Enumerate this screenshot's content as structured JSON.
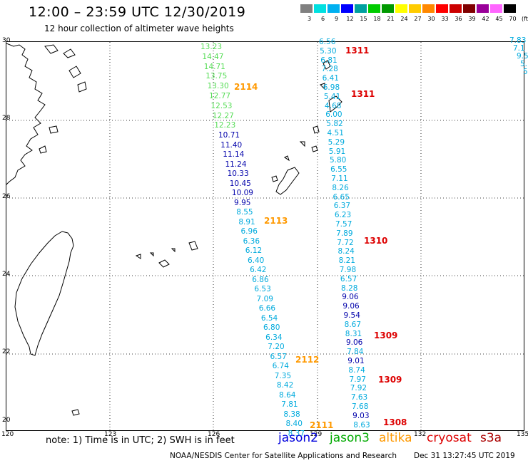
{
  "title": "12:00 – 23:59 UTC 12/30/2019",
  "subtitle": "12 hour collection of altimeter wave heights",
  "legend": {
    "unit": "(ft)",
    "colors": [
      "#808080",
      "#00e0e0",
      "#00b0f0",
      "#0000ff",
      "#00a0a0",
      "#00cc00",
      "#009900",
      "#ffff00",
      "#ffcc00",
      "#ff8800",
      "#ff0000",
      "#cc0000",
      "#800000",
      "#990099",
      "#ff66ff",
      "#000000"
    ],
    "labels": [
      "3",
      "6",
      "9",
      "12",
      "15",
      "18",
      "21",
      "24",
      "27",
      "30",
      "33",
      "36",
      "39",
      "42",
      "45",
      "70"
    ]
  },
  "axes": {
    "lat_labels": [
      "30",
      "28",
      "26",
      "24",
      "22",
      "20"
    ],
    "lon_labels": [
      "120",
      "123",
      "126",
      "129",
      "132",
      "135"
    ]
  },
  "colors": {
    "green": "#55dd55",
    "navy": "#0000aa",
    "cyan": "#00aadd",
    "orange": "#ff9900",
    "red": "#dd0000"
  },
  "tracks": {
    "green": [
      "13.23",
      "14.47",
      "14.71",
      "13.75",
      "13.30",
      "12.77",
      "12.53",
      "12.27",
      "12.23"
    ],
    "track_a": [
      {
        "v": "10.71",
        "c": "navy"
      },
      {
        "v": "11.40",
        "c": "navy"
      },
      {
        "v": "11.14",
        "c": "navy"
      },
      {
        "v": "11.24",
        "c": "navy"
      },
      {
        "v": "10.33",
        "c": "navy"
      },
      {
        "v": "10.45",
        "c": "navy"
      },
      {
        "v": "10.09",
        "c": "navy"
      },
      {
        "v": "9.95",
        "c": "navy"
      },
      {
        "v": "8.55",
        "c": "cyan"
      },
      {
        "v": "8.91",
        "c": "cyan"
      },
      {
        "v": "6.96",
        "c": "cyan"
      },
      {
        "v": "6.36",
        "c": "cyan"
      },
      {
        "v": "6.12",
        "c": "cyan"
      },
      {
        "v": "6.40",
        "c": "cyan"
      },
      {
        "v": "6.42",
        "c": "cyan"
      },
      {
        "v": "6.86",
        "c": "cyan"
      },
      {
        "v": "6.53",
        "c": "cyan"
      },
      {
        "v": "7.09",
        "c": "cyan"
      },
      {
        "v": "6.66",
        "c": "cyan"
      },
      {
        "v": "6.54",
        "c": "cyan"
      },
      {
        "v": "6.80",
        "c": "cyan"
      },
      {
        "v": "6.34",
        "c": "cyan"
      },
      {
        "v": "7.20",
        "c": "cyan"
      },
      {
        "v": "6.57",
        "c": "cyan"
      },
      {
        "v": "6.74",
        "c": "cyan"
      },
      {
        "v": "7.35",
        "c": "cyan"
      },
      {
        "v": "8.42",
        "c": "cyan"
      },
      {
        "v": "8.64",
        "c": "cyan"
      },
      {
        "v": "7.81",
        "c": "cyan"
      },
      {
        "v": "8.38",
        "c": "cyan"
      },
      {
        "v": "8.40",
        "c": "cyan"
      },
      {
        "v": "8.37",
        "c": "cyan"
      }
    ],
    "track_b": [
      {
        "v": "6.56",
        "c": "cyan"
      },
      {
        "v": "5.30",
        "c": "cyan"
      },
      {
        "v": "6.81",
        "c": "cyan"
      },
      {
        "v": "7.28",
        "c": "cyan"
      },
      {
        "v": "6.41",
        "c": "cyan"
      },
      {
        "v": "6.98",
        "c": "cyan"
      },
      {
        "v": "5.41",
        "c": "cyan"
      },
      {
        "v": "4.68",
        "c": "cyan"
      },
      {
        "v": "6.00",
        "c": "cyan"
      },
      {
        "v": "5.82",
        "c": "cyan"
      },
      {
        "v": "4.51",
        "c": "cyan"
      },
      {
        "v": "5.29",
        "c": "cyan"
      },
      {
        "v": "5.91",
        "c": "cyan"
      },
      {
        "v": "5.80",
        "c": "cyan"
      },
      {
        "v": "6.55",
        "c": "cyan"
      },
      {
        "v": "7.11",
        "c": "cyan"
      },
      {
        "v": "8.26",
        "c": "cyan"
      },
      {
        "v": "6.65",
        "c": "cyan"
      },
      {
        "v": "6.37",
        "c": "cyan"
      },
      {
        "v": "6.23",
        "c": "cyan"
      },
      {
        "v": "7.57",
        "c": "cyan"
      },
      {
        "v": "7.89",
        "c": "cyan"
      },
      {
        "v": "7.72",
        "c": "cyan"
      },
      {
        "v": "8.24",
        "c": "cyan"
      },
      {
        "v": "8.21",
        "c": "cyan"
      },
      {
        "v": "7.98",
        "c": "cyan"
      },
      {
        "v": "6.57",
        "c": "cyan"
      },
      {
        "v": "8.28",
        "c": "cyan"
      },
      {
        "v": "9.06",
        "c": "navy"
      },
      {
        "v": "9.06",
        "c": "navy"
      },
      {
        "v": "9.54",
        "c": "navy"
      },
      {
        "v": "8.67",
        "c": "cyan"
      },
      {
        "v": "8.31",
        "c": "cyan"
      },
      {
        "v": "9.06",
        "c": "navy"
      },
      {
        "v": "7.84",
        "c": "cyan"
      },
      {
        "v": "9.01",
        "c": "navy"
      },
      {
        "v": "8.74",
        "c": "cyan"
      },
      {
        "v": "7.97",
        "c": "cyan"
      },
      {
        "v": "7.92",
        "c": "cyan"
      },
      {
        "v": "7.63",
        "c": "cyan"
      },
      {
        "v": "7.68",
        "c": "cyan"
      },
      {
        "v": "9.03",
        "c": "navy"
      },
      {
        "v": "8.63",
        "c": "cyan"
      }
    ],
    "track_c": [
      "7.83",
      "7.1",
      "9.5",
      "5.",
      "5"
    ]
  },
  "passes": {
    "orange": [
      "2114",
      "2113",
      "2112",
      "2111"
    ],
    "red": [
      "1311",
      "1311",
      "1310",
      "1309",
      "1309",
      "1308"
    ]
  },
  "note": "note:  1) Time is in UTC;  2) SWH is in feet",
  "satellites": [
    {
      "name": "jason2",
      "color": "#0000dd"
    },
    {
      "name": "jason3",
      "color": "#00aa00"
    },
    {
      "name": "altika",
      "color": "#ff9900"
    },
    {
      "name": "cryosat",
      "color": "#dd0000"
    },
    {
      "name": "s3a",
      "color": "#aa0000"
    }
  ],
  "credit": "NOAA/NESDIS Center for Satellite Applications and Research",
  "timestamp": "Dec 31 13:27:45 UTC 2019"
}
